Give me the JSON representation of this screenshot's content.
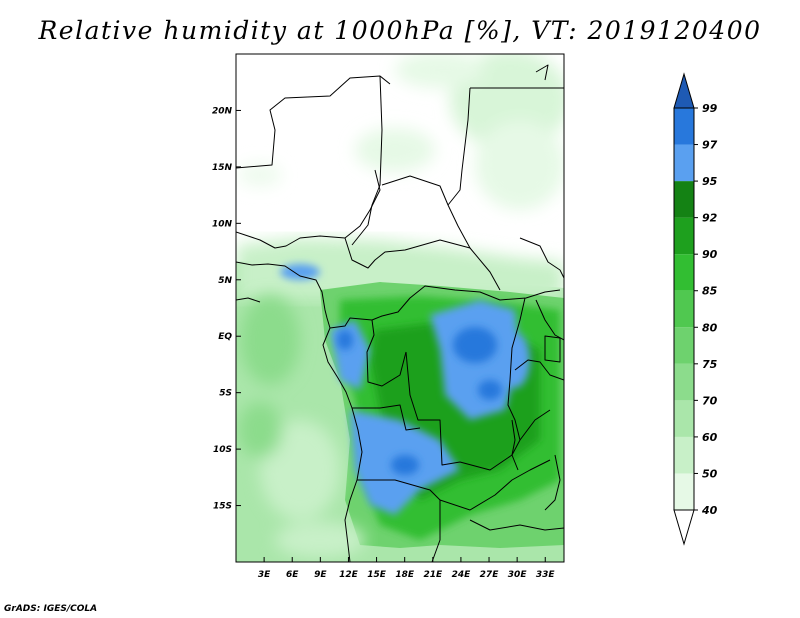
{
  "title": "Relative humidity at 1000hPa [%], VT: 2019120400",
  "credit": "GrADS: IGES/COLA",
  "map": {
    "lon_range": [
      0,
      35
    ],
    "lat_range": [
      -20,
      25
    ],
    "lat_ticks": [
      {
        "value": 20,
        "label": "20N"
      },
      {
        "value": 15,
        "label": "15N"
      },
      {
        "value": 10,
        "label": "10N"
      },
      {
        "value": 5,
        "label": "5N"
      },
      {
        "value": 0,
        "label": "EQ"
      },
      {
        "value": -5,
        "label": "5S"
      },
      {
        "value": -10,
        "label": "10S"
      },
      {
        "value": -15,
        "label": "15S"
      }
    ],
    "lon_ticks": [
      {
        "value": 3,
        "label": "3E"
      },
      {
        "value": 6,
        "label": "6E"
      },
      {
        "value": 9,
        "label": "9E"
      },
      {
        "value": 12,
        "label": "12E"
      },
      {
        "value": 15,
        "label": "15E"
      },
      {
        "value": 18,
        "label": "18E"
      },
      {
        "value": 21,
        "label": "21E"
      },
      {
        "value": 24,
        "label": "24E"
      },
      {
        "value": 27,
        "label": "27E"
      },
      {
        "value": 30,
        "label": "30E"
      },
      {
        "value": 33,
        "label": "33E"
      }
    ]
  },
  "colorbar": {
    "levels": [
      40,
      50,
      60,
      70,
      75,
      80,
      85,
      90,
      92,
      95,
      97,
      99
    ],
    "colors": [
      "#ffffff",
      "#e6f9e6",
      "#c8f0c8",
      "#aae6aa",
      "#8cdc8c",
      "#6ed26e",
      "#50c850",
      "#32be32",
      "#1ea01e",
      "#148214",
      "#5aa0f0",
      "#2878dc",
      "#1e5ab4"
    ]
  },
  "color_roles": {
    "map_background": "#ffffff",
    "border_color": "#000000"
  }
}
